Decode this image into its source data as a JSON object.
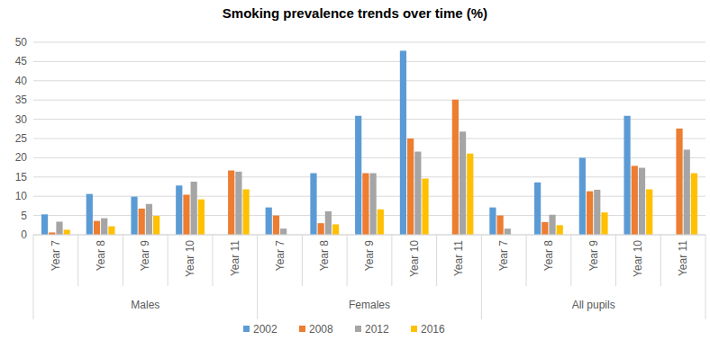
{
  "chart_data": {
    "type": "bar",
    "title": "Smoking prevalence trends over time (%)",
    "categories": [
      "Year 7",
      "Year 8",
      "Year 9",
      "Year 10",
      "Year 11",
      "Year 7",
      "Year 8",
      "Year 9",
      "Year 10",
      "Year 11",
      "Year 7",
      "Year 8",
      "Year 9",
      "Year 10",
      "Year 11"
    ],
    "groups": [
      "Males",
      "Females",
      "All pupils"
    ],
    "series": [
      {
        "name": "2002",
        "color": "#5b9bd5",
        "values": [
          5.3,
          10.6,
          9.9,
          12.8,
          null,
          7.1,
          16.0,
          30.9,
          47.8,
          null,
          7.1,
          13.6,
          20.0,
          30.9,
          null
        ]
      },
      {
        "name": "2008",
        "color": "#ed7d31",
        "values": [
          0.6,
          3.6,
          6.8,
          10.4,
          16.7,
          5.0,
          3.0,
          16.0,
          25.0,
          35.1,
          5.0,
          3.3,
          11.3,
          17.9,
          27.6
        ]
      },
      {
        "name": "2012",
        "color": "#a5a5a5",
        "values": [
          3.4,
          4.3,
          8.0,
          13.8,
          16.4,
          1.6,
          6.1,
          16.0,
          21.6,
          26.8,
          1.6,
          5.2,
          11.7,
          17.4,
          22.1
        ]
      },
      {
        "name": "2016",
        "color": "#ffc000",
        "values": [
          1.3,
          2.2,
          4.9,
          9.2,
          11.8,
          0,
          2.7,
          6.6,
          14.6,
          21.1,
          0,
          2.5,
          5.8,
          11.8,
          16.0
        ]
      }
    ],
    "ylim": [
      0,
      50
    ],
    "yticks": [
      0,
      5,
      10,
      15,
      20,
      25,
      30,
      35,
      40,
      45,
      50
    ],
    "grid": true,
    "legend": "bottom"
  }
}
